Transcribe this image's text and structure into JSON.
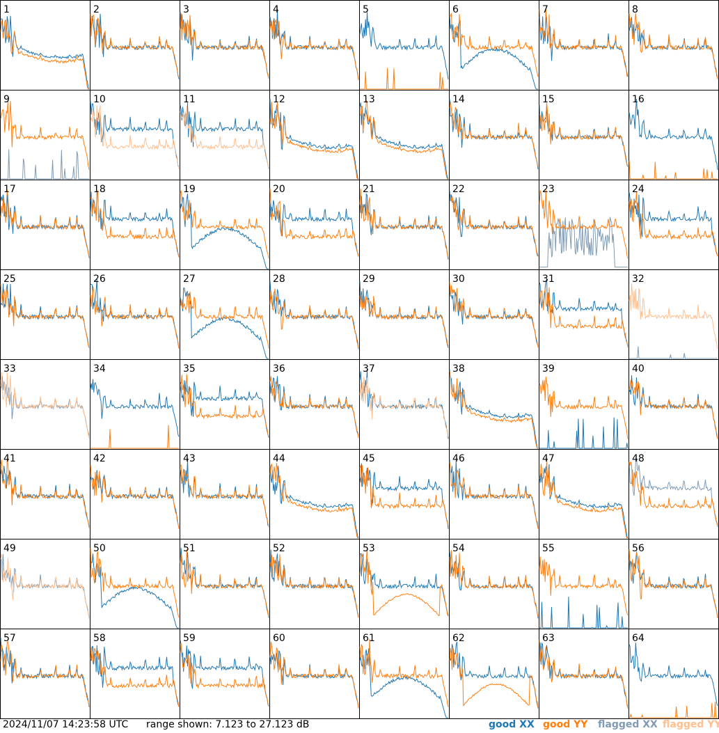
{
  "footer": {
    "timestamp": "2024/11/07 14:23:58 UTC",
    "range": "range shown: 7.123 to 27.123 dB"
  },
  "legend": [
    {
      "label": "good XX",
      "color": "#1f77b4"
    },
    {
      "label": "good YY",
      "color": "#ff7f0e"
    },
    {
      "label": "flagged XX",
      "color": "#7f9bb5"
    },
    {
      "label": "flagged YY",
      "color": "#ffbf8e"
    }
  ],
  "chart_data": {
    "type": "line",
    "y_range_db": [
      7.123,
      27.123
    ],
    "grid": false,
    "panel_rows": 8,
    "panel_cols": 8,
    "panels": [
      {
        "label": "1",
        "xx": "good",
        "yy": "good",
        "shape": "deep"
      },
      {
        "label": "2",
        "xx": "good",
        "yy": "good",
        "shape": "flat"
      },
      {
        "label": "3",
        "xx": "good",
        "yy": "good",
        "shape": "flat"
      },
      {
        "label": "4",
        "xx": "good",
        "yy": "good",
        "shape": "flat"
      },
      {
        "label": "5",
        "xx": "good",
        "yy": "good",
        "shape": "yy_missing"
      },
      {
        "label": "6",
        "xx": "good",
        "yy": "good",
        "shape": "xx_dip"
      },
      {
        "label": "7",
        "xx": "good",
        "yy": "good",
        "shape": "flat"
      },
      {
        "label": "8",
        "xx": "good",
        "yy": "good",
        "shape": "flat"
      },
      {
        "label": "9",
        "xx": "flagged",
        "yy": "good",
        "shape": "xx_spiky_low"
      },
      {
        "label": "10",
        "xx": "good",
        "yy": "flagged",
        "shape": "split"
      },
      {
        "label": "11",
        "xx": "good",
        "yy": "flagged",
        "shape": "split"
      },
      {
        "label": "12",
        "xx": "good",
        "yy": "good",
        "shape": "deep"
      },
      {
        "label": "13",
        "xx": "good",
        "yy": "good",
        "shape": "deep"
      },
      {
        "label": "14",
        "xx": "good",
        "yy": "good",
        "shape": "flat"
      },
      {
        "label": "15",
        "xx": "good",
        "yy": "good",
        "shape": "flat"
      },
      {
        "label": "16",
        "xx": "good",
        "yy": "good",
        "shape": "yy_missing"
      },
      {
        "label": "17",
        "xx": "good",
        "yy": "good",
        "shape": "flat"
      },
      {
        "label": "18",
        "xx": "good",
        "yy": "good",
        "shape": "split"
      },
      {
        "label": "19",
        "xx": "good",
        "yy": "good",
        "shape": "xx_dip"
      },
      {
        "label": "20",
        "xx": "good",
        "yy": "good",
        "shape": "split"
      },
      {
        "label": "21",
        "xx": "good",
        "yy": "good",
        "shape": "flat"
      },
      {
        "label": "22",
        "xx": "good",
        "yy": "good",
        "shape": "flat"
      },
      {
        "label": "23",
        "xx": "flagged",
        "yy": "good",
        "shape": "xx_noise"
      },
      {
        "label": "24",
        "xx": "good",
        "yy": "good",
        "shape": "split"
      },
      {
        "label": "25",
        "xx": "good",
        "yy": "good",
        "shape": "flat"
      },
      {
        "label": "26",
        "xx": "good",
        "yy": "good",
        "shape": "flat"
      },
      {
        "label": "27",
        "xx": "good",
        "yy": "good",
        "shape": "xx_dip"
      },
      {
        "label": "28",
        "xx": "good",
        "yy": "good",
        "shape": "flat"
      },
      {
        "label": "29",
        "xx": "good",
        "yy": "good",
        "shape": "flat"
      },
      {
        "label": "30",
        "xx": "good",
        "yy": "good",
        "shape": "flat"
      },
      {
        "label": "31",
        "xx": "good",
        "yy": "good",
        "shape": "split"
      },
      {
        "label": "32",
        "xx": "flagged",
        "yy": "flagged",
        "shape": "yy_only"
      },
      {
        "label": "33",
        "xx": "flagged",
        "yy": "flagged",
        "shape": "flat"
      },
      {
        "label": "34",
        "xx": "good",
        "yy": "good",
        "shape": "yy_missing"
      },
      {
        "label": "35",
        "xx": "good",
        "yy": "good",
        "shape": "split"
      },
      {
        "label": "36",
        "xx": "good",
        "yy": "good",
        "shape": "flat"
      },
      {
        "label": "37",
        "xx": "good",
        "yy": "flagged",
        "shape": "flat"
      },
      {
        "label": "38",
        "xx": "good",
        "yy": "good",
        "shape": "deep"
      },
      {
        "label": "39",
        "xx": "good",
        "yy": "good",
        "shape": "xx_spiky_low"
      },
      {
        "label": "40",
        "xx": "good",
        "yy": "good",
        "shape": "flat"
      },
      {
        "label": "41",
        "xx": "good",
        "yy": "good",
        "shape": "flat"
      },
      {
        "label": "42",
        "xx": "good",
        "yy": "good",
        "shape": "flat"
      },
      {
        "label": "43",
        "xx": "good",
        "yy": "good",
        "shape": "flat"
      },
      {
        "label": "44",
        "xx": "good",
        "yy": "good",
        "shape": "deep"
      },
      {
        "label": "45",
        "xx": "good",
        "yy": "good",
        "shape": "split"
      },
      {
        "label": "46",
        "xx": "good",
        "yy": "good",
        "shape": "flat"
      },
      {
        "label": "47",
        "xx": "good",
        "yy": "good",
        "shape": "deep"
      },
      {
        "label": "48",
        "xx": "flagged",
        "yy": "good",
        "shape": "split"
      },
      {
        "label": "49",
        "xx": "flagged",
        "yy": "flagged",
        "shape": "flat"
      },
      {
        "label": "50",
        "xx": "good",
        "yy": "good",
        "shape": "xx_dip"
      },
      {
        "label": "51",
        "xx": "good",
        "yy": "good",
        "shape": "flat"
      },
      {
        "label": "52",
        "xx": "good",
        "yy": "good",
        "shape": "flat"
      },
      {
        "label": "53",
        "xx": "good",
        "yy": "good",
        "shape": "yy_dip"
      },
      {
        "label": "54",
        "xx": "good",
        "yy": "good",
        "shape": "flat"
      },
      {
        "label": "55",
        "xx": "good",
        "yy": "good",
        "shape": "xx_spiky_low"
      },
      {
        "label": "56",
        "xx": "good",
        "yy": "good",
        "shape": "flat"
      },
      {
        "label": "57",
        "xx": "good",
        "yy": "good",
        "shape": "flat"
      },
      {
        "label": "58",
        "xx": "good",
        "yy": "good",
        "shape": "split"
      },
      {
        "label": "59",
        "xx": "good",
        "yy": "good",
        "shape": "split"
      },
      {
        "label": "60",
        "xx": "good",
        "yy": "good",
        "shape": "flat"
      },
      {
        "label": "61",
        "xx": "good",
        "yy": "good",
        "shape": "xx_dip"
      },
      {
        "label": "62",
        "xx": "good",
        "yy": "good",
        "shape": "yy_dip"
      },
      {
        "label": "63",
        "xx": "good",
        "yy": "good",
        "shape": "flat"
      },
      {
        "label": "64",
        "xx": "good",
        "yy": "good",
        "shape": "yy_missing"
      }
    ]
  }
}
